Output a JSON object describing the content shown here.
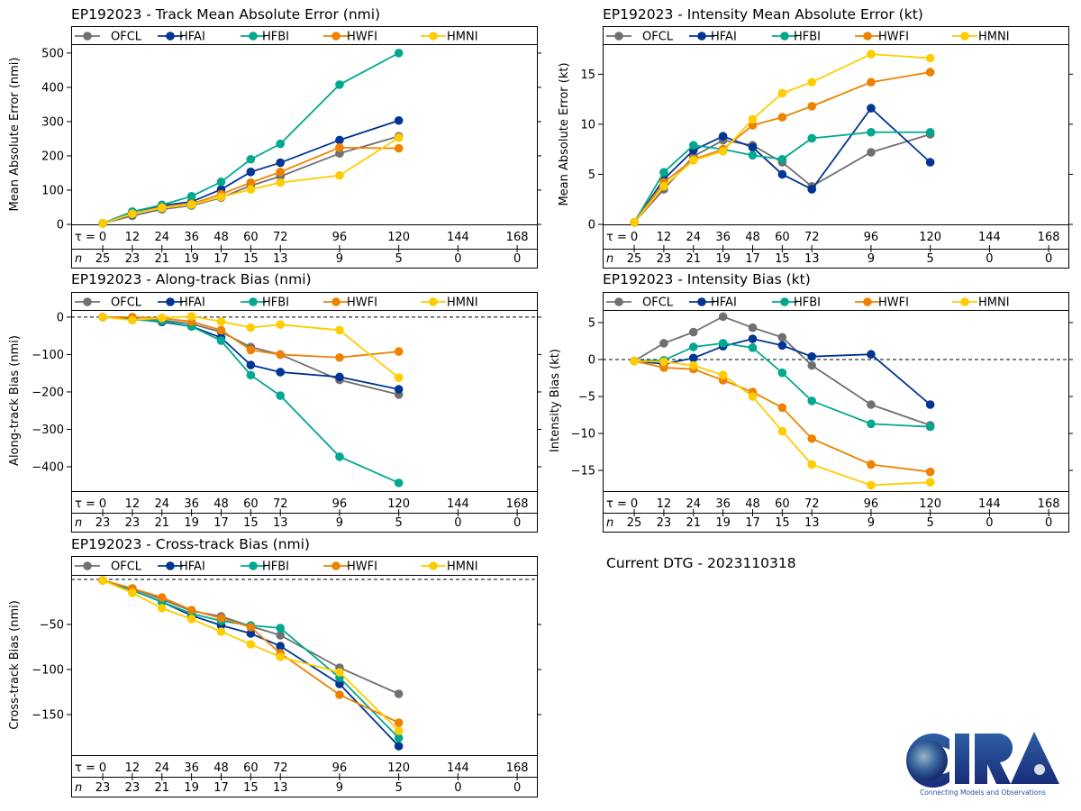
{
  "storm_id": "EP192023",
  "current_dtg_label": "Current DTG - 2023110318",
  "logo": {
    "name": "CIRA",
    "tagline": "Connecting Models and Observations"
  },
  "colors": {
    "OFCL": "#707070",
    "HFAI": "#003594",
    "HFBI": "#00a88f",
    "HWFI": "#ee8200",
    "HMNI": "#ffcc00"
  },
  "chart_data": [
    {
      "id": "track-mae",
      "type": "line",
      "title": "EP192023 - Track Mean Absolute Error (nmi)",
      "xlabel": "",
      "ylabel": "Mean Absolute Error (nmi)",
      "x": [
        0,
        12,
        24,
        36,
        48,
        60,
        72,
        96,
        120
      ],
      "xticks": [
        0,
        12,
        24,
        36,
        48,
        60,
        72,
        96,
        120,
        144,
        168
      ],
      "n": [
        25,
        23,
        21,
        19,
        17,
        15,
        13,
        9,
        5,
        0,
        0
      ],
      "xlim": [
        -12.8,
        176
      ],
      "ylim": [
        0,
        526
      ],
      "yticks": [
        0,
        100,
        200,
        300,
        400,
        500
      ],
      "zero_line": false,
      "legend_position": "top",
      "series": [
        {
          "name": "OFCL",
          "values": [
            3,
            25,
            44,
            55,
            78,
            113,
            140,
            207,
            257
          ]
        },
        {
          "name": "HFAI",
          "values": [
            3,
            37,
            55,
            66,
            102,
            153,
            180,
            246,
            303
          ]
        },
        {
          "name": "HFBI",
          "values": [
            3,
            37,
            57,
            82,
            124,
            190,
            235,
            408,
            500
          ]
        },
        {
          "name": "HWFI",
          "values": [
            3,
            31,
            50,
            60,
            88,
            122,
            153,
            224,
            222
          ]
        },
        {
          "name": "HMNI",
          "values": [
            3,
            31,
            48,
            58,
            80,
            102,
            122,
            143,
            253
          ]
        }
      ]
    },
    {
      "id": "intensity-mae",
      "type": "line",
      "title": "EP192023 - Intensity Mean Absolute Error (kt)",
      "xlabel": "",
      "ylabel": "Mean Absolute Error (kt)",
      "x": [
        0,
        12,
        24,
        36,
        48,
        60,
        72,
        96,
        120
      ],
      "xticks": [
        0,
        12,
        24,
        36,
        48,
        60,
        72,
        96,
        120,
        144,
        168
      ],
      "n": [
        25,
        23,
        21,
        19,
        17,
        15,
        13,
        9,
        5,
        0,
        0
      ],
      "xlim": [
        -12.8,
        176
      ],
      "ylim": [
        0,
        18
      ],
      "yticks": [
        0,
        5,
        10,
        15
      ],
      "zero_line": false,
      "legend_position": "top",
      "series": [
        {
          "name": "OFCL",
          "values": [
            0.2,
            3.5,
            6.8,
            8.4,
            7.9,
            6.2,
            3.8,
            7.2,
            9.0
          ]
        },
        {
          "name": "HFAI",
          "values": [
            0.2,
            4.5,
            7.4,
            8.8,
            7.7,
            5.0,
            3.5,
            11.6,
            6.2
          ]
        },
        {
          "name": "HFBI",
          "values": [
            0.2,
            5.2,
            7.9,
            7.5,
            6.9,
            6.5,
            8.6,
            9.2,
            9.2
          ]
        },
        {
          "name": "HWFI",
          "values": [
            0.2,
            4.2,
            6.5,
            7.5,
            9.9,
            10.7,
            11.8,
            14.2,
            15.2
          ]
        },
        {
          "name": "HMNI",
          "values": [
            0.2,
            3.8,
            6.4,
            7.3,
            10.5,
            13.1,
            14.2,
            17.0,
            16.6
          ]
        }
      ]
    },
    {
      "id": "along-track-bias",
      "type": "line",
      "title": "EP192023 - Along-track Bias (nmi)",
      "xlabel": "",
      "ylabel": "Along-track Bias (nmi)",
      "x": [
        0,
        12,
        24,
        36,
        48,
        60,
        72,
        96,
        120
      ],
      "xticks": [
        0,
        12,
        24,
        36,
        48,
        60,
        72,
        96,
        120,
        144,
        168
      ],
      "n": [
        23,
        23,
        21,
        19,
        17,
        15,
        13,
        9,
        5,
        0,
        0
      ],
      "xlim": [
        -12.8,
        176
      ],
      "ylim": [
        -465,
        19
      ],
      "yticks": [
        0,
        -100,
        -200,
        -300,
        -400
      ],
      "zero_line": true,
      "legend_position": "top",
      "series": [
        {
          "name": "OFCL",
          "values": [
            0,
            -5,
            -8,
            -18,
            -40,
            -80,
            -100,
            -168,
            -207
          ]
        },
        {
          "name": "HFAI",
          "values": [
            0,
            -5,
            -13,
            -25,
            -55,
            -128,
            -147,
            -160,
            -193
          ]
        },
        {
          "name": "HFBI",
          "values": [
            0,
            -7,
            -10,
            -25,
            -63,
            -155,
            -210,
            -373,
            -443
          ]
        },
        {
          "name": "HWFI",
          "values": [
            0,
            0,
            -3,
            -12,
            -35,
            -88,
            -100,
            -108,
            -92
          ]
        },
        {
          "name": "HMNI",
          "values": [
            0,
            -8,
            -2,
            2,
            -12,
            -28,
            -20,
            -35,
            -162
          ]
        }
      ]
    },
    {
      "id": "intensity-bias",
      "type": "line",
      "title": "EP192023 - Intensity Bias (kt)",
      "xlabel": "",
      "ylabel": "Intensity Bias (kt)",
      "x": [
        0,
        12,
        24,
        36,
        48,
        60,
        72,
        96,
        120
      ],
      "xticks": [
        0,
        12,
        24,
        36,
        48,
        60,
        72,
        96,
        120,
        144,
        168
      ],
      "n": [
        25,
        23,
        21,
        19,
        17,
        15,
        13,
        9,
        5,
        0,
        0
      ],
      "xlim": [
        -12.8,
        176
      ],
      "ylim": [
        -17.8,
        6.7
      ],
      "yticks": [
        5,
        0,
        -5,
        -10,
        -15
      ],
      "zero_line": true,
      "legend_position": "top",
      "series": [
        {
          "name": "OFCL",
          "values": [
            -0.2,
            2.2,
            3.7,
            5.8,
            4.3,
            3.0,
            -0.8,
            -6.1,
            -8.9
          ]
        },
        {
          "name": "HFAI",
          "values": [
            -0.2,
            -0.6,
            0.2,
            1.8,
            2.8,
            1.9,
            0.4,
            0.7,
            -6.1
          ]
        },
        {
          "name": "HFBI",
          "values": [
            -0.2,
            -0.1,
            1.7,
            2.2,
            1.6,
            -1.8,
            -5.6,
            -8.7,
            -9.1
          ]
        },
        {
          "name": "HWFI",
          "values": [
            -0.2,
            -1.1,
            -1.3,
            -2.8,
            -4.4,
            -6.5,
            -10.7,
            -14.2,
            -15.2
          ]
        },
        {
          "name": "HMNI",
          "values": [
            -0.2,
            -0.3,
            -0.8,
            -2.1,
            -5.0,
            -9.7,
            -14.2,
            -17.0,
            -16.6
          ]
        }
      ]
    },
    {
      "id": "cross-track-bias",
      "type": "line",
      "title": "EP192023 - Cross-track Bias (nmi)",
      "xlabel": "",
      "ylabel": "Cross-track Bias (nmi)",
      "x": [
        0,
        12,
        24,
        36,
        48,
        60,
        72,
        96,
        120
      ],
      "xticks": [
        0,
        12,
        24,
        36,
        48,
        60,
        72,
        96,
        120,
        144,
        168
      ],
      "n": [
        23,
        23,
        21,
        19,
        17,
        15,
        13,
        9,
        5,
        0,
        0
      ],
      "xlim": [
        -12.8,
        176
      ],
      "ylim": [
        -195,
        5
      ],
      "yticks": [
        -50,
        -100,
        -150
      ],
      "zero_line": true,
      "legend_position": "top",
      "series": [
        {
          "name": "OFCL",
          "values": [
            -1,
            -10,
            -22,
            -35,
            -41,
            -52,
            -62,
            -98,
            -127
          ]
        },
        {
          "name": "HFAI",
          "values": [
            -1,
            -12,
            -25,
            -40,
            -51,
            -60,
            -74,
            -116,
            -185
          ]
        },
        {
          "name": "HFBI",
          "values": [
            -1,
            -12,
            -25,
            -38,
            -46,
            -51,
            -54,
            -109,
            -176
          ]
        },
        {
          "name": "HWFI",
          "values": [
            -1,
            -10,
            -20,
            -34,
            -43,
            -53,
            -82,
            -128,
            -159
          ]
        },
        {
          "name": "HMNI",
          "values": [
            -1,
            -15,
            -32,
            -44,
            -58,
            -72,
            -86,
            -103,
            -168
          ]
        }
      ]
    }
  ],
  "labels": {
    "tau_prefix": "τ = ",
    "n_prefix": "n"
  }
}
